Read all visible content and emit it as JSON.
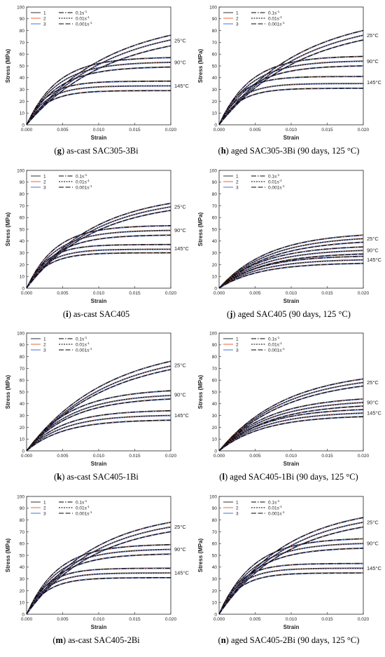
{
  "figure": {
    "legend_labels": [
      "1",
      "2",
      "3"
    ],
    "legend_rates": [
      "0.1s",
      "0.01s",
      "0.001s"
    ],
    "legend_rate_exponent": "-1",
    "series_colors": [
      "#1a1a1a",
      "#e8541e",
      "#2f62d9"
    ],
    "fit_color": "#000000"
  },
  "chart_data": [
    {
      "type": "line",
      "letter": "g",
      "caption": "as-cast SAC305-3Bi",
      "xlabel": "Strain",
      "ylabel": "Stress (MPa)",
      "xlim": [
        0,
        0.02
      ],
      "ylim": [
        0,
        100
      ],
      "xticks": [
        "0.000",
        "0.005",
        "0.010",
        "0.015",
        "0.020"
      ],
      "yticks": [
        "0",
        "10",
        "20",
        "30",
        "40",
        "50",
        "60",
        "70",
        "80",
        "90",
        "100"
      ],
      "temperatures": [
        {
          "label": "25°C",
          "max": [
            76,
            72,
            67
          ],
          "curvature": 5
        },
        {
          "label": "90°C",
          "max": [
            57,
            53,
            49
          ],
          "curvature": 13
        },
        {
          "label": "145°C",
          "max": [
            37,
            33,
            29
          ],
          "curvature": 20
        }
      ]
    },
    {
      "type": "line",
      "letter": "h",
      "caption": "aged SAC305-3Bi (90 days, 125 °C)",
      "xlabel": "Strain",
      "ylabel": "Stress (MPa)",
      "xlim": [
        0,
        0.02
      ],
      "ylim": [
        0,
        100
      ],
      "xticks": [
        "0.000",
        "0.005",
        "0.010",
        "0.015",
        "0.020"
      ],
      "yticks": [
        "0",
        "10",
        "20",
        "30",
        "40",
        "50",
        "60",
        "70",
        "80",
        "90",
        "100"
      ],
      "temperatures": [
        {
          "label": "25°C",
          "max": [
            80,
            76,
            72
          ],
          "curvature": 5
        },
        {
          "label": "90°C",
          "max": [
            58,
            54,
            50
          ],
          "curvature": 13
        },
        {
          "label": "145°C",
          "max": [
            41,
            35,
            31
          ],
          "curvature": 20
        }
      ]
    },
    {
      "type": "line",
      "letter": "i",
      "caption": "as-cast SAC405",
      "xlabel": "Strain",
      "ylabel": "Stress (MPa)",
      "xlim": [
        0,
        0.02
      ],
      "ylim": [
        0,
        100
      ],
      "xticks": [
        "0.000",
        "0.005",
        "0.010",
        "0.015",
        "0.020"
      ],
      "yticks": [
        "0",
        "10",
        "20",
        "30",
        "40",
        "50",
        "60",
        "70",
        "80",
        "90",
        "100"
      ],
      "temperatures": [
        {
          "label": "25°C",
          "max": [
            72,
            69,
            66
          ],
          "curvature": 6
        },
        {
          "label": "90°C",
          "max": [
            53,
            49,
            45
          ],
          "curvature": 14
        },
        {
          "label": "145°C",
          "max": [
            37,
            33,
            30
          ],
          "curvature": 20
        }
      ]
    },
    {
      "type": "line",
      "letter": "j",
      "caption": "aged SAC405 (90 days, 125 °C)",
      "xlabel": "Strain",
      "ylabel": "Stress (MPa)",
      "xlim": [
        0,
        0.02
      ],
      "ylim": [
        0,
        100
      ],
      "xticks": [
        "0.000",
        "0.005",
        "0.010",
        "0.015",
        "0.020"
      ],
      "yticks": [
        "0",
        "10",
        "20",
        "30",
        "40",
        "50",
        "60",
        "70",
        "80",
        "90",
        "100"
      ],
      "temperatures": [
        {
          "label": "25°C",
          "max": [
            45,
            42,
            39
          ],
          "curvature": 8
        },
        {
          "label": "90°C",
          "max": [
            35,
            32,
            29
          ],
          "curvature": 9
        },
        {
          "label": "145°C",
          "max": [
            27,
            24,
            21
          ],
          "curvature": 10
        }
      ]
    },
    {
      "type": "line",
      "letter": "k",
      "caption": "as-cast SAC405-1Bi",
      "xlabel": "Strain",
      "ylabel": "Stress (MPa)",
      "xlim": [
        0,
        0.02
      ],
      "ylim": [
        0,
        100
      ],
      "xticks": [
        "0.000",
        "0.005",
        "0.010",
        "0.015",
        "0.020"
      ],
      "yticks": [
        "0",
        "10",
        "20",
        "30",
        "40",
        "50",
        "60",
        "70",
        "80",
        "90",
        "100"
      ],
      "temperatures": [
        {
          "label": "25°C",
          "max": [
            76,
            72,
            69
          ],
          "curvature": 5
        },
        {
          "label": "90°C",
          "max": [
            51,
            47,
            44
          ],
          "curvature": 9
        },
        {
          "label": "145°C",
          "max": [
            34,
            30,
            26
          ],
          "curvature": 11
        }
      ]
    },
    {
      "type": "line",
      "letter": "l",
      "caption": "aged SAC405-1Bi (90 days, 125 °C)",
      "xlabel": "Strain",
      "ylabel": "Stress (MPa)",
      "xlim": [
        0,
        0.02
      ],
      "ylim": [
        0,
        100
      ],
      "xticks": [
        "0.000",
        "0.005",
        "0.010",
        "0.015",
        "0.020"
      ],
      "yticks": [
        "0",
        "10",
        "20",
        "30",
        "40",
        "50",
        "60",
        "70",
        "80",
        "90",
        "100"
      ],
      "temperatures": [
        {
          "label": "25°C",
          "max": [
            61,
            58,
            55
          ],
          "curvature": 6
        },
        {
          "label": "90°C",
          "max": [
            44,
            41,
            38
          ],
          "curvature": 8
        },
        {
          "label": "145°C",
          "max": [
            35,
            32,
            29
          ],
          "curvature": 9
        }
      ]
    },
    {
      "type": "line",
      "letter": "m",
      "caption": "as-cast SAC405-2Bi",
      "xlabel": "Strain",
      "ylabel": "Stress (MPa)",
      "xlim": [
        0,
        0.02
      ],
      "ylim": [
        0,
        100
      ],
      "xticks": [
        "0.000",
        "0.005",
        "0.010",
        "0.015",
        "0.020"
      ],
      "yticks": [
        "0",
        "10",
        "20",
        "30",
        "40",
        "50",
        "60",
        "70",
        "80",
        "90",
        "100"
      ],
      "temperatures": [
        {
          "label": "25°C",
          "max": [
            78,
            74,
            70
          ],
          "curvature": 6
        },
        {
          "label": "90°C",
          "max": [
            59,
            55,
            51
          ],
          "curvature": 13
        },
        {
          "label": "145°C",
          "max": [
            39,
            35,
            31
          ],
          "curvature": 20
        }
      ]
    },
    {
      "type": "line",
      "letter": "n",
      "caption": "aged SAC405-2Bi (90 days, 125 °C)",
      "xlabel": "Strain",
      "ylabel": "Stress (MPa)",
      "xlim": [
        0,
        0.02
      ],
      "ylim": [
        0,
        100
      ],
      "xticks": [
        "0.000",
        "0.005",
        "0.010",
        "0.015",
        "0.020"
      ],
      "yticks": [
        "0",
        "10",
        "20",
        "30",
        "40",
        "50",
        "60",
        "70",
        "80",
        "90",
        "100"
      ],
      "temperatures": [
        {
          "label": "25°C",
          "max": [
            82,
            78,
            74
          ],
          "curvature": 6
        },
        {
          "label": "90°C",
          "max": [
            64,
            60,
            56
          ],
          "curvature": 12
        },
        {
          "label": "145°C",
          "max": [
            43,
            39,
            35
          ],
          "curvature": 20
        }
      ]
    }
  ]
}
